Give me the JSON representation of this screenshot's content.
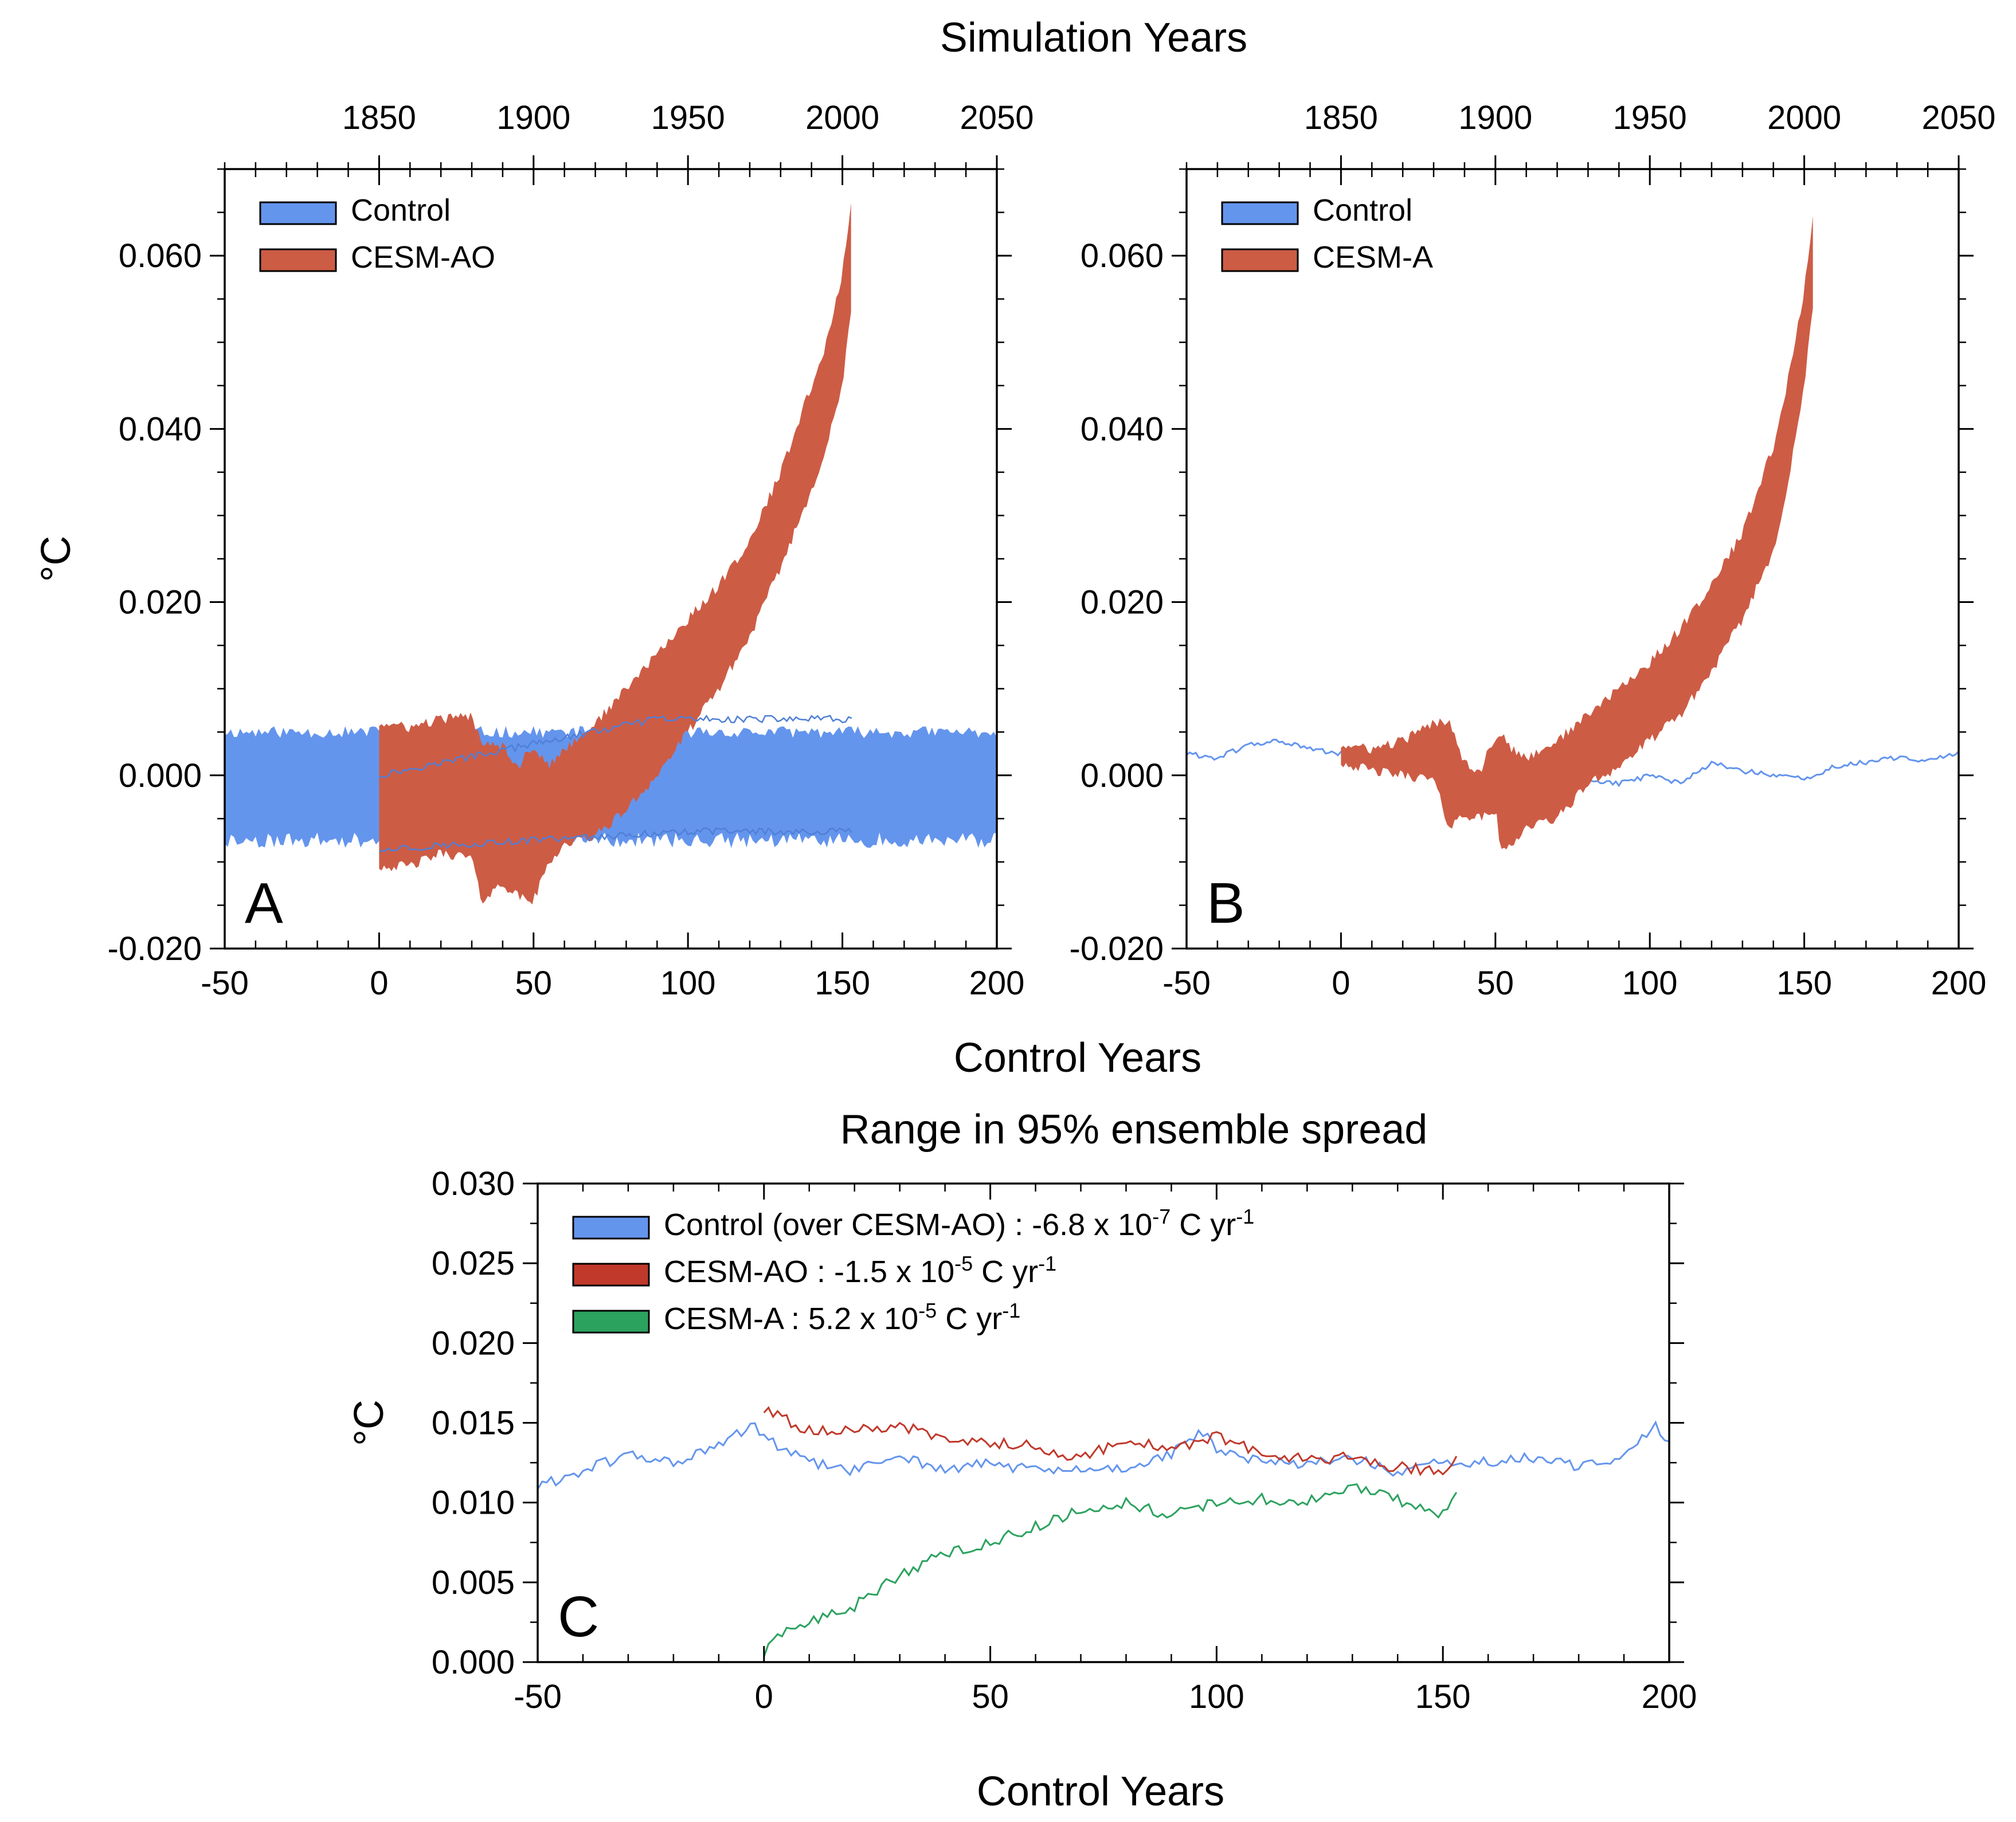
{
  "chart_data": [
    {
      "panel": "A",
      "type": "area",
      "title": "Simulation Years",
      "xlabel": "Control Years",
      "ylabel": "°C",
      "xlim": [
        -50,
        200
      ],
      "ylim": [
        -0.02,
        0.07
      ],
      "xticks": [
        "-50",
        "0",
        "50",
        "100",
        "150",
        "200"
      ],
      "yticks": [
        "-0.020",
        "0.000",
        "0.020",
        "0.040",
        "0.060"
      ],
      "top_axis_ticks": [
        "1850",
        "1900",
        "1950",
        "2000",
        "2050"
      ],
      "top_axis_offset": 1850,
      "series": [
        {
          "name": "Control",
          "color": "#6495ed",
          "x_range": [
            -50,
            200
          ],
          "lower_mean": -0.0075,
          "upper_mean": 0.005,
          "center_line": true
        },
        {
          "name": "CESM-AO",
          "color": "#cd5c45",
          "x": [
            0,
            10,
            20,
            30,
            33,
            40,
            45,
            50,
            55,
            60,
            70,
            80,
            90,
            100,
            110,
            120,
            130,
            140,
            145,
            150,
            153
          ],
          "upper": [
            0.006,
            0.0055,
            0.0065,
            0.0068,
            0.004,
            0.0035,
            0.001,
            0.0035,
            0.001,
            0.003,
            0.006,
            0.01,
            0.014,
            0.018,
            0.022,
            0.027,
            0.035,
            0.045,
            0.05,
            0.058,
            0.067
          ],
          "lower": [
            -0.0105,
            -0.0105,
            -0.009,
            -0.0095,
            -0.0145,
            -0.0125,
            -0.014,
            -0.0145,
            -0.01,
            -0.008,
            -0.007,
            -0.004,
            0.0,
            0.005,
            0.01,
            0.016,
            0.024,
            0.033,
            0.038,
            0.045,
            0.054
          ]
        }
      ],
      "legend": [
        "Control",
        "CESM-AO"
      ],
      "legend_position": "top-left",
      "label": "A"
    },
    {
      "panel": "B",
      "type": "area",
      "title": "",
      "xlabel": "Control Years",
      "ylabel": "",
      "xlim": [
        -50,
        200
      ],
      "ylim": [
        -0.02,
        0.07
      ],
      "xticks": [
        "-50",
        "0",
        "50",
        "100",
        "150",
        "200"
      ],
      "yticks": [
        "-0.020",
        "0.000",
        "0.020",
        "0.040",
        "0.060"
      ],
      "top_axis_ticks": [
        "1850",
        "1900",
        "1950",
        "2000",
        "2050"
      ],
      "top_axis_offset": 1850,
      "series": [
        {
          "name": "Control",
          "color": "#6495ed",
          "x": [
            -50,
            -40,
            -30,
            -20,
            -10,
            0,
            10,
            20,
            30,
            40,
            50,
            60,
            70,
            80,
            90,
            100,
            110,
            120,
            130,
            140,
            150,
            160,
            170,
            180,
            190,
            200
          ],
          "y": [
            0.0025,
            0.002,
            0.0035,
            0.004,
            0.003,
            0.0025,
            0.0015,
            0.001,
            0.0005,
            0.0,
            -0.0015,
            -0.0012,
            -0.0015,
            -0.0005,
            -0.001,
            0.0,
            -0.001,
            0.0015,
            0.0005,
            0.0,
            -0.0005,
            0.001,
            0.0015,
            0.002,
            0.0018,
            0.0025
          ]
        },
        {
          "name": "CESM-A",
          "color": "#cd5c45",
          "x": [
            0,
            10,
            20,
            30,
            35,
            40,
            45,
            50,
            52,
            55,
            60,
            70,
            80,
            90,
            100,
            110,
            120,
            130,
            140,
            145,
            150,
            153
          ],
          "upper": [
            0.0035,
            0.003,
            0.004,
            0.006,
            0.0065,
            0.0015,
            0.0005,
            0.0045,
            0.005,
            0.003,
            0.002,
            0.004,
            0.007,
            0.01,
            0.013,
            0.017,
            0.022,
            0.028,
            0.038,
            0.046,
            0.056,
            0.0655
          ],
          "lower": [
            0.0015,
            0.0005,
            0.0,
            -0.0005,
            -0.006,
            -0.0045,
            -0.005,
            -0.004,
            -0.009,
            -0.008,
            -0.006,
            -0.005,
            -0.001,
            0.001,
            0.004,
            0.007,
            0.012,
            0.018,
            0.026,
            0.034,
            0.045,
            0.0545
          ]
        }
      ],
      "legend": [
        "Control",
        "CESM-A"
      ],
      "legend_position": "top-left",
      "label": "B"
    },
    {
      "panel": "C",
      "type": "line",
      "title": "Range in 95% ensemble spread",
      "xlabel": "Control Years",
      "ylabel": "°C",
      "xlim": [
        -50,
        200
      ],
      "ylim": [
        0,
        0.03
      ],
      "xticks": [
        "-50",
        "0",
        "50",
        "100",
        "150",
        "200"
      ],
      "yticks": [
        "0.000",
        "0.005",
        "0.010",
        "0.015",
        "0.020",
        "0.025",
        "0.030"
      ],
      "series": [
        {
          "name": "Control (over CESM-AO)",
          "color": "#6495ed",
          "x": [
            -50,
            -40,
            -30,
            -20,
            -10,
            -2,
            0,
            10,
            20,
            30,
            40,
            50,
            60,
            70,
            80,
            90,
            97,
            100,
            110,
            120,
            130,
            140,
            150,
            160,
            170,
            180,
            190,
            197,
            200
          ],
          "y": [
            0.011,
            0.012,
            0.013,
            0.0125,
            0.0135,
            0.015,
            0.014,
            0.0125,
            0.012,
            0.013,
            0.012,
            0.0125,
            0.012,
            0.012,
            0.0122,
            0.013,
            0.0145,
            0.0132,
            0.0125,
            0.0125,
            0.0128,
            0.0118,
            0.0125,
            0.0125,
            0.0128,
            0.0122,
            0.013,
            0.0148,
            0.0135
          ]
        },
        {
          "name": "CESM-AO",
          "color": "#c0392b",
          "x": [
            0,
            10,
            20,
            30,
            40,
            50,
            60,
            70,
            80,
            90,
            100,
            110,
            120,
            130,
            140,
            150,
            153
          ],
          "y": [
            0.0158,
            0.0145,
            0.0145,
            0.0148,
            0.014,
            0.0138,
            0.0135,
            0.0128,
            0.014,
            0.0132,
            0.0142,
            0.013,
            0.0128,
            0.0128,
            0.0122,
            0.012,
            0.013
          ]
        },
        {
          "name": "CESM-A",
          "color": "#2ca25f",
          "x": [
            0,
            5,
            10,
            20,
            30,
            40,
            50,
            60,
            70,
            80,
            90,
            100,
            110,
            120,
            130,
            140,
            150,
            153
          ],
          "y": [
            0.0005,
            0.002,
            0.0025,
            0.0035,
            0.0055,
            0.0068,
            0.0075,
            0.0085,
            0.0095,
            0.01,
            0.0092,
            0.01,
            0.0102,
            0.01,
            0.011,
            0.0102,
            0.0092,
            0.0104
          ]
        }
      ],
      "legend": [
        {
          "name": "Control (over CESM-AO)",
          "rate": "-6.8 x 10",
          "exp": "-7",
          "unit": " C yr",
          "unit_exp": "-1"
        },
        {
          "name": "CESM-AO",
          "rate": "-1.5 x 10",
          "exp": "-5",
          "unit": " C yr",
          "unit_exp": "-1"
        },
        {
          "name": "CESM-A",
          "rate": "5.2 x 10",
          "exp": "-5",
          "unit": " C yr",
          "unit_exp": "-1"
        }
      ],
      "legend_position": "top-left",
      "label": "C"
    }
  ]
}
